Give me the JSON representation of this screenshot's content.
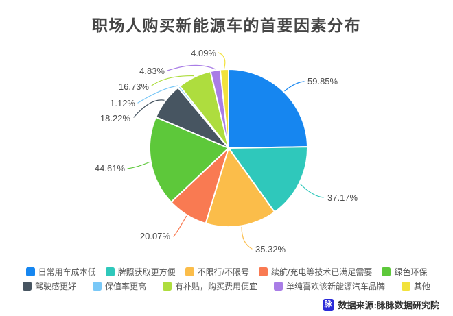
{
  "title": "职场人购买新能源车的首要因素分布",
  "chart_data": {
    "type": "pie",
    "title": "职场人购买新能源车的首要因素分布",
    "start_angle": "top",
    "direction": "clockwise",
    "label_format": "percent",
    "legend_position": "bottom",
    "categories": [
      "日常用车成本低",
      "牌照获取更方便",
      "不限行/不限号",
      "续航/充电等技术已满足需要",
      "绿色环保",
      "驾驶感更好",
      "保值率更高",
      "有补贴，购买费用便宜",
      "单纯喜欢该新能源汽车品牌",
      "其他"
    ],
    "values": [
      59.85,
      37.17,
      35.32,
      20.07,
      44.61,
      18.22,
      1.12,
      16.73,
      4.83,
      4.09
    ],
    "colors": [
      "#1686f0",
      "#2fc8bb",
      "#fbbd4a",
      "#f97a52",
      "#5dc83a",
      "#475561",
      "#79c8f7",
      "#aedd3e",
      "#a97de6",
      "#f2e23c"
    ]
  },
  "legend": {
    "row1_indices": [
      0,
      1,
      2,
      3,
      4
    ],
    "row2_indices": [
      5,
      6,
      7,
      8,
      9
    ]
  },
  "source": {
    "label": "数据来源:脉脉数据研究院",
    "logo_text": "脉",
    "logo_color": "#2b2bd8"
  }
}
